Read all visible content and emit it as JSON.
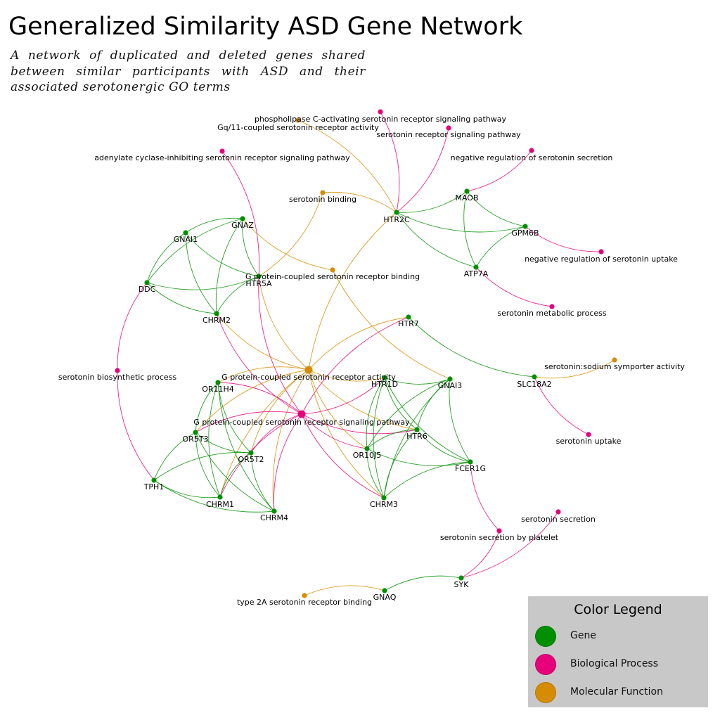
{
  "title": "Generalized Similarity ASD Gene Network",
  "subtitle": "A network of duplicated and deleted genes shared between similar participants with ASD and their associated serotonergic GO terms",
  "colors": {
    "gene": "#008f00",
    "process": "#e6007a",
    "function": "#d68c00"
  },
  "legend": {
    "title": "Color Legend",
    "items": [
      {
        "label": "Gene",
        "type": "gene"
      },
      {
        "label": "Biological Process",
        "type": "process"
      },
      {
        "label": "Molecular Function",
        "type": "function"
      }
    ]
  },
  "nodes": [
    {
      "id": "HTR2C",
      "label": "HTR2C",
      "type": "gene"
    },
    {
      "id": "MAOB",
      "label": "MAOB",
      "type": "gene"
    },
    {
      "id": "GPM6B",
      "label": "GPM6B",
      "type": "gene"
    },
    {
      "id": "ATP7A",
      "label": "ATP7A",
      "type": "gene"
    },
    {
      "id": "GNAZ",
      "label": "GNAZ",
      "type": "gene"
    },
    {
      "id": "GNAI1",
      "label": "GNAI1",
      "type": "gene"
    },
    {
      "id": "DDC",
      "label": "DDC",
      "type": "gene"
    },
    {
      "id": "HTR5A",
      "label": "HTR5A",
      "type": "gene"
    },
    {
      "id": "CHRM2",
      "label": "CHRM2",
      "type": "gene"
    },
    {
      "id": "HTR7",
      "label": "HTR7",
      "type": "gene"
    },
    {
      "id": "SLC18A2",
      "label": "SLC18A2",
      "type": "gene"
    },
    {
      "id": "OR11H4",
      "label": "OR11H4",
      "type": "gene"
    },
    {
      "id": "HTR1D",
      "label": "HTR1D",
      "type": "gene"
    },
    {
      "id": "GNAI3",
      "label": "GNAI3",
      "type": "gene"
    },
    {
      "id": "OR5T3",
      "label": "OR5T3",
      "type": "gene"
    },
    {
      "id": "OR5T2",
      "label": "OR5T2",
      "type": "gene"
    },
    {
      "id": "HTR6",
      "label": "HTR6",
      "type": "gene"
    },
    {
      "id": "OR10J5",
      "label": "OR10J5",
      "type": "gene"
    },
    {
      "id": "FCER1G",
      "label": "FCER1G",
      "type": "gene"
    },
    {
      "id": "TPH1",
      "label": "TPH1",
      "type": "gene"
    },
    {
      "id": "CHRM1",
      "label": "CHRM1",
      "type": "gene"
    },
    {
      "id": "CHRM4",
      "label": "CHRM4",
      "type": "gene"
    },
    {
      "id": "CHRM3",
      "label": "CHRM3",
      "type": "gene"
    },
    {
      "id": "SYK",
      "label": "SYK",
      "type": "gene"
    },
    {
      "id": "GNAQ",
      "label": "GNAQ",
      "type": "gene"
    },
    {
      "id": "GPCR_SIG",
      "label": "G protein-coupled serotonin receptor signaling pathway",
      "type": "process"
    },
    {
      "id": "PLC_SIG",
      "label": "phospholipase C-activating serotonin receptor signaling pathway",
      "type": "process"
    },
    {
      "id": "SR_SIG",
      "label": "serotonin receptor signaling pathway",
      "type": "process"
    },
    {
      "id": "NEG_SEC",
      "label": "negative regulation of serotonin secretion",
      "type": "process"
    },
    {
      "id": "ADCY_SIG",
      "label": "adenylate cyclase-inhibiting serotonin receptor signaling pathway",
      "type": "process"
    },
    {
      "id": "NEG_UPT",
      "label": "negative regulation of serotonin uptake",
      "type": "process"
    },
    {
      "id": "MET",
      "label": "serotonin metabolic process",
      "type": "process"
    },
    {
      "id": "BIOSYN",
      "label": "serotonin biosynthetic process",
      "type": "process"
    },
    {
      "id": "UPTAKE",
      "label": "serotonin uptake",
      "type": "process"
    },
    {
      "id": "SEC",
      "label": "serotonin secretion",
      "type": "process"
    },
    {
      "id": "SEC_PLT",
      "label": "serotonin secretion by platelet",
      "type": "process"
    },
    {
      "id": "GPCR_ACT",
      "label": "G protein-coupled serotonin receptor activity",
      "type": "function"
    },
    {
      "id": "GQ11",
      "label": "Gq/11-coupled serotonin receptor activity",
      "type": "function"
    },
    {
      "id": "BIND",
      "label": "serotonin binding",
      "type": "function"
    },
    {
      "id": "GPCR_BIND",
      "label": "G protein-coupled serotonin receptor binding",
      "type": "function"
    },
    {
      "id": "SYMP",
      "label": "serotonin:sodium symporter activity",
      "type": "function"
    },
    {
      "id": "T2A",
      "label": "type 2A serotonin receptor binding",
      "type": "function"
    }
  ],
  "edges": [
    [
      "HTR2C",
      "PLC_SIG"
    ],
    [
      "HTR2C",
      "SR_SIG"
    ],
    [
      "HTR2C",
      "GQ11"
    ],
    [
      "HTR2C",
      "BIND"
    ],
    [
      "HTR2C",
      "GPCR_ACT"
    ],
    [
      "HTR2C",
      "MAOB"
    ],
    [
      "HTR2C",
      "GPM6B"
    ],
    [
      "HTR2C",
      "ATP7A"
    ],
    [
      "MAOB",
      "NEG_SEC"
    ],
    [
      "MAOB",
      "GPM6B"
    ],
    [
      "MAOB",
      "ATP7A"
    ],
    [
      "GPM6B",
      "NEG_UPT"
    ],
    [
      "GPM6B",
      "ATP7A"
    ],
    [
      "ATP7A",
      "MET"
    ],
    [
      "GNAZ",
      "GNAI1"
    ],
    [
      "GNAZ",
      "DDC"
    ],
    [
      "GNAZ",
      "CHRM2"
    ],
    [
      "GNAZ",
      "HTR5A"
    ],
    [
      "GNAZ",
      "GPCR_BIND"
    ],
    [
      "GNAI1",
      "DDC"
    ],
    [
      "GNAI1",
      "CHRM2"
    ],
    [
      "GNAI1",
      "HTR5A"
    ],
    [
      "DDC",
      "CHRM2"
    ],
    [
      "DDC",
      "HTR5A"
    ],
    [
      "DDC",
      "BIOSYN"
    ],
    [
      "HTR5A",
      "CHRM2"
    ],
    [
      "HTR5A",
      "ADCY_SIG"
    ],
    [
      "HTR5A",
      "BIND"
    ],
    [
      "HTR5A",
      "GPCR_ACT"
    ],
    [
      "HTR5A",
      "GPCR_SIG"
    ],
    [
      "CHRM2",
      "GPCR_ACT"
    ],
    [
      "CHRM2",
      "GPCR_SIG"
    ],
    [
      "GPCR_BIND",
      "GNAI3"
    ],
    [
      "HTR7",
      "GPCR_ACT"
    ],
    [
      "HTR7",
      "GPCR_SIG"
    ],
    [
      "HTR7",
      "SLC18A2"
    ],
    [
      "SLC18A2",
      "SYMP"
    ],
    [
      "SLC18A2",
      "UPTAKE"
    ],
    [
      "BIOSYN",
      "TPH1"
    ],
    [
      "GPCR_ACT",
      "OR11H4"
    ],
    [
      "GPCR_ACT",
      "HTR1D"
    ],
    [
      "GPCR_ACT",
      "HTR6"
    ],
    [
      "GPCR_ACT",
      "OR5T3"
    ],
    [
      "GPCR_ACT",
      "OR5T2"
    ],
    [
      "GPCR_ACT",
      "CHRM1"
    ],
    [
      "GPCR_ACT",
      "CHRM4"
    ],
    [
      "GPCR_ACT",
      "CHRM3"
    ],
    [
      "GPCR_ACT",
      "OR10J5"
    ],
    [
      "GPCR_SIG",
      "OR11H4"
    ],
    [
      "GPCR_SIG",
      "HTR1D"
    ],
    [
      "GPCR_SIG",
      "HTR6"
    ],
    [
      "GPCR_SIG",
      "OR5T3"
    ],
    [
      "GPCR_SIG",
      "OR5T2"
    ],
    [
      "GPCR_SIG",
      "CHRM1"
    ],
    [
      "GPCR_SIG",
      "CHRM4"
    ],
    [
      "GPCR_SIG",
      "CHRM3"
    ],
    [
      "GPCR_SIG",
      "OR10J5"
    ],
    [
      "OR11H4",
      "OR5T3"
    ],
    [
      "OR11H4",
      "OR5T2"
    ],
    [
      "OR11H4",
      "CHRM1"
    ],
    [
      "OR11H4",
      "CHRM4"
    ],
    [
      "OR5T3",
      "OR5T2"
    ],
    [
      "OR5T3",
      "TPH1"
    ],
    [
      "OR5T3",
      "CHRM1"
    ],
    [
      "OR5T3",
      "CHRM4"
    ],
    [
      "OR5T2",
      "TPH1"
    ],
    [
      "OR5T2",
      "CHRM1"
    ],
    [
      "OR5T2",
      "CHRM4"
    ],
    [
      "TPH1",
      "CHRM1"
    ],
    [
      "TPH1",
      "CHRM4"
    ],
    [
      "HTR1D",
      "GNAI3"
    ],
    [
      "HTR1D",
      "HTR6"
    ],
    [
      "HTR1D",
      "OR10J5"
    ],
    [
      "HTR1D",
      "FCER1G"
    ],
    [
      "HTR1D",
      "CHRM3"
    ],
    [
      "GNAI3",
      "HTR6"
    ],
    [
      "GNAI3",
      "OR10J5"
    ],
    [
      "GNAI3",
      "FCER1G"
    ],
    [
      "GNAI3",
      "CHRM3"
    ],
    [
      "HTR6",
      "OR10J5"
    ],
    [
      "HTR6",
      "FCER1G"
    ],
    [
      "HTR6",
      "CHRM3"
    ],
    [
      "OR10J5",
      "FCER1G"
    ],
    [
      "OR10J5",
      "CHRM3"
    ],
    [
      "FCER1G",
      "CHRM3"
    ],
    [
      "FCER1G",
      "SEC_PLT"
    ],
    [
      "SYK",
      "SEC_PLT"
    ],
    [
      "SYK",
      "SEC"
    ],
    [
      "SYK",
      "GNAQ"
    ],
    [
      "GNAQ",
      "T2A"
    ]
  ]
}
